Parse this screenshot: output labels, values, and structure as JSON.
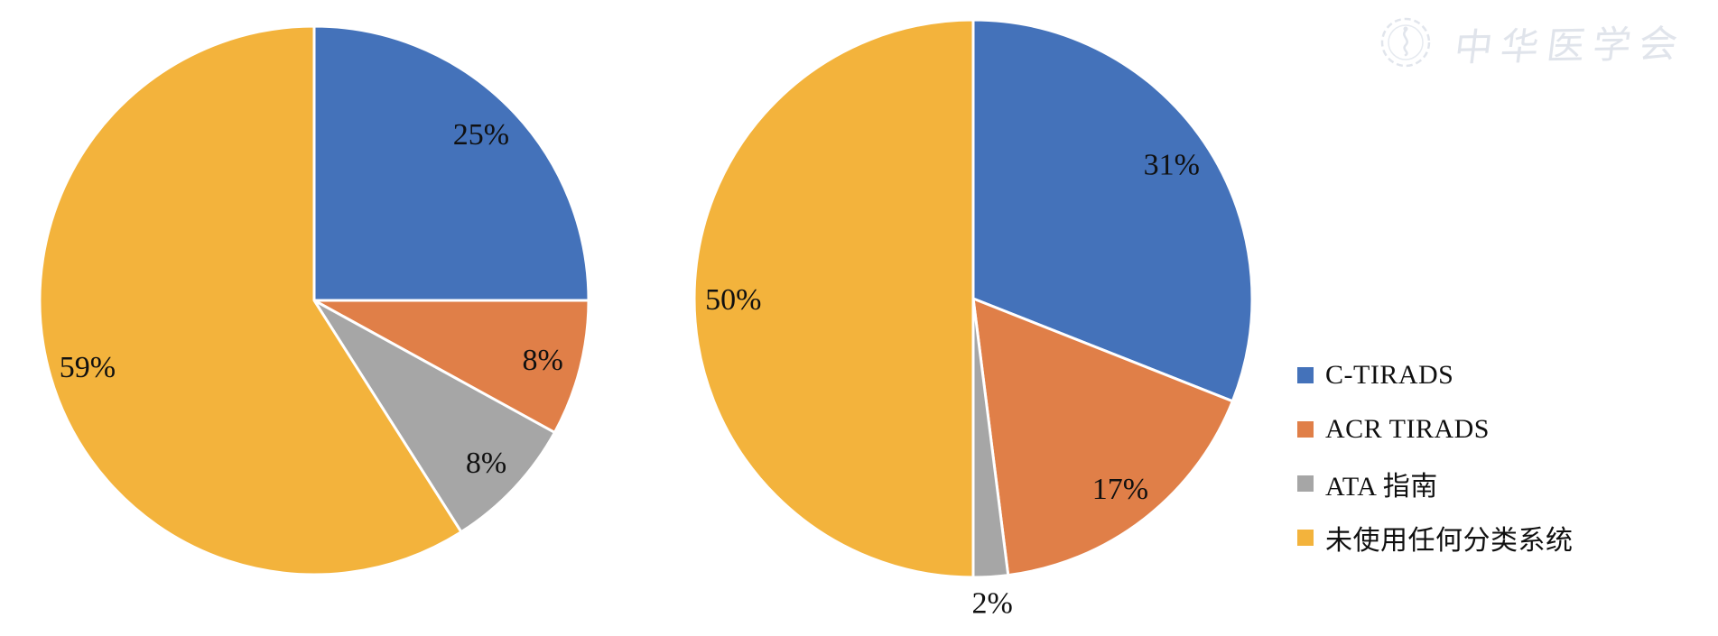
{
  "watermark": {
    "text": "中华医学会",
    "logo_name": "cma-seal",
    "color": "#e0e4eb"
  },
  "legend": {
    "items": [
      {
        "label": "C-TIRADS",
        "color": "#4472BA"
      },
      {
        "label": "ACR TIRADS",
        "color": "#E07F48"
      },
      {
        "label": "ATA 指南",
        "color": "#A6A6A6"
      },
      {
        "label": "未使用任何分类系统",
        "color": "#F3B33C"
      }
    ],
    "position": "right"
  },
  "chart_data": [
    {
      "type": "pie",
      "name": "left-pie",
      "categories": [
        "C-TIRADS",
        "ACR TIRADS",
        "ATA 指南",
        "未使用任何分类系统"
      ],
      "values": [
        25,
        8,
        8,
        59
      ],
      "labels": [
        "25%",
        "8%",
        "8%",
        "59%"
      ],
      "colors": [
        "#4472BA",
        "#E07F48",
        "#A6A6A6",
        "#F3B33C"
      ],
      "start_angle_deg": 0,
      "direction": "clockwise",
      "slice_border_color": "#ffffff"
    },
    {
      "type": "pie",
      "name": "right-pie",
      "categories": [
        "C-TIRADS",
        "ACR TIRADS",
        "ATA 指南",
        "未使用任何分类系统"
      ],
      "values": [
        31,
        17,
        2,
        50
      ],
      "labels": [
        "31%",
        "17%",
        "2%",
        "50%"
      ],
      "colors": [
        "#4472BA",
        "#E07F48",
        "#A6A6A6",
        "#F3B33C"
      ],
      "start_angle_deg": 0,
      "direction": "clockwise",
      "slice_border_color": "#ffffff"
    }
  ]
}
